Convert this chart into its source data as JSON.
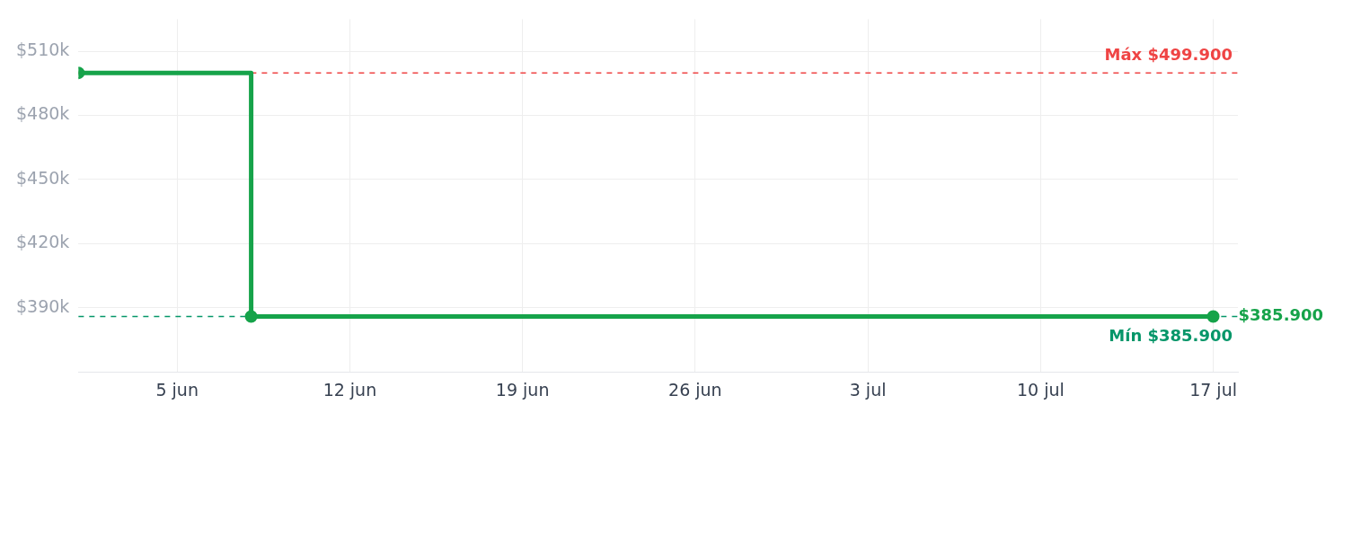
{
  "chart_data": {
    "type": "step",
    "x": [
      "--06-01",
      "--06-08",
      "--07-17"
    ],
    "series": [
      {
        "color": "#16a34a",
        "values": [
          499900,
          385900,
          385900
        ]
      }
    ],
    "xlim": [
      "--06-01",
      "--07-18"
    ],
    "xticks": [
      {
        "value": "--06-05",
        "label": "5 jun"
      },
      {
        "value": "--06-12",
        "label": "12 jun"
      },
      {
        "value": "--06-19",
        "label": "19 jun"
      },
      {
        "value": "--06-26",
        "label": "26 jun"
      },
      {
        "value": "--07-03",
        "label": "3 jul"
      },
      {
        "value": "--07-10",
        "label": "10 jul"
      },
      {
        "value": "--07-17",
        "label": "17 jul"
      }
    ],
    "ylim": [
      360000,
      525000
    ],
    "yticks": [
      {
        "value": 390000,
        "label": "$390k"
      },
      {
        "value": 420000,
        "label": "$420k"
      },
      {
        "value": 450000,
        "label": "$450k"
      },
      {
        "value": 480000,
        "label": "$480k"
      },
      {
        "value": 510000,
        "label": "$510k"
      }
    ],
    "grid": true,
    "marker": "circle",
    "line_style": "solid",
    "ref_lines": [
      {
        "axis": "y",
        "value": 499900,
        "label": "Máx $499.900",
        "color": "#ef4444",
        "line_style": "dashed"
      },
      {
        "axis": "y",
        "value": 385900,
        "label": "Mín $385.900",
        "color": "#059669",
        "line_style": "dashed"
      }
    ],
    "annotations": [
      {
        "text": "$385.900",
        "x": "--07-17",
        "y": 385900
      }
    ]
  }
}
